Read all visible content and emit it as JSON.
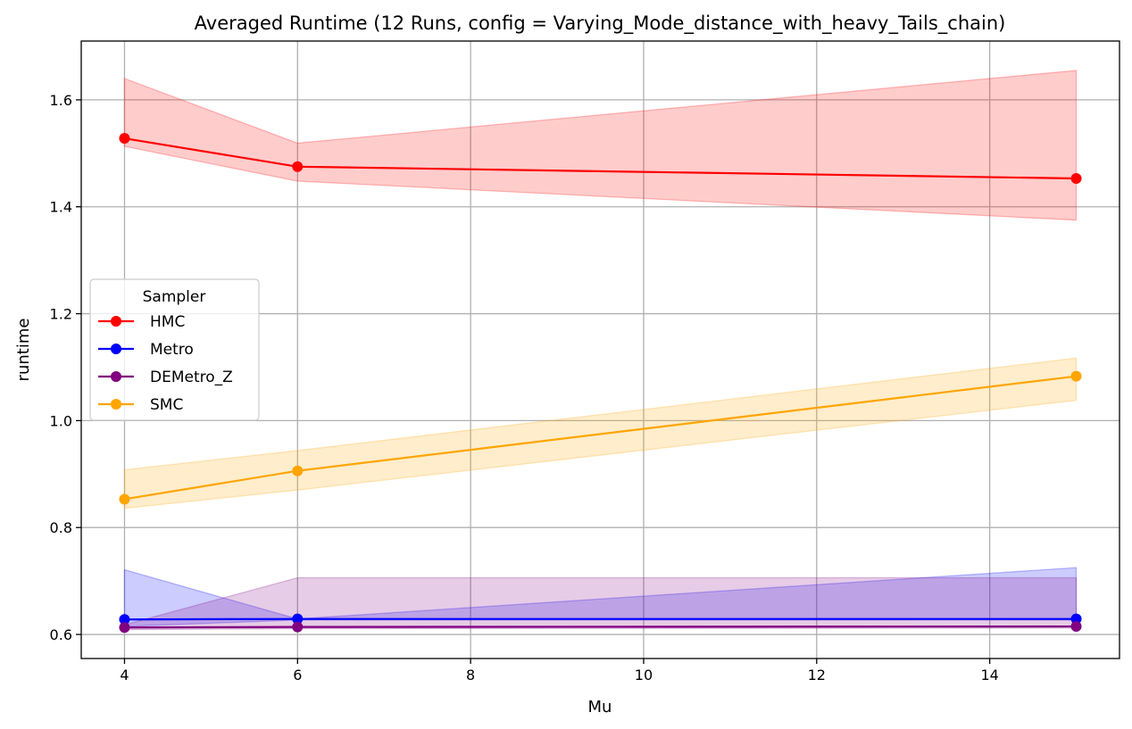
{
  "chart_data": {
    "type": "line",
    "title": "Averaged Runtime (12 Runs, config = Varying_Mode_distance_with_heavy_Tails_chain)",
    "xlabel": "Mu",
    "ylabel": "runtime",
    "xlim": [
      3.5,
      15.5
    ],
    "ylim": [
      0.555,
      1.71
    ],
    "xticks": [
      4,
      6,
      8,
      10,
      12,
      14
    ],
    "yticks": [
      0.6,
      0.8,
      1.0,
      1.2,
      1.4,
      1.6
    ],
    "xtick_labels": [
      "4",
      "6",
      "8",
      "10",
      "12",
      "14"
    ],
    "ytick_labels": [
      "0.6",
      "0.8",
      "1.0",
      "1.2",
      "1.4",
      "1.6"
    ],
    "grid": true,
    "legend": {
      "title": "Sampler",
      "placement": "center-left"
    },
    "x": [
      4,
      6,
      15
    ],
    "series": [
      {
        "name": "HMC",
        "color": "#ff0000",
        "values": [
          1.528,
          1.475,
          1.453
        ],
        "band_lower": [
          1.513,
          1.448,
          1.375
        ],
        "band_upper": [
          1.64,
          1.519,
          1.655
        ]
      },
      {
        "name": "Metro",
        "color": "#0000ff",
        "values": [
          0.628,
          0.629,
          0.629
        ],
        "band_lower": [
          0.615,
          0.627,
          0.627
        ],
        "band_upper": [
          0.721,
          0.629,
          0.725
        ]
      },
      {
        "name": "DEMetro_Z",
        "color": "#800080",
        "values": [
          0.613,
          0.614,
          0.615
        ],
        "band_lower": [
          0.609,
          0.611,
          0.612
        ],
        "band_upper": [
          0.618,
          0.706,
          0.706
        ]
      },
      {
        "name": "SMC",
        "color": "#ffa500",
        "values": [
          0.853,
          0.906,
          1.083
        ],
        "band_lower": [
          0.836,
          0.87,
          1.038
        ],
        "band_upper": [
          0.908,
          0.944,
          1.117
        ]
      }
    ]
  }
}
